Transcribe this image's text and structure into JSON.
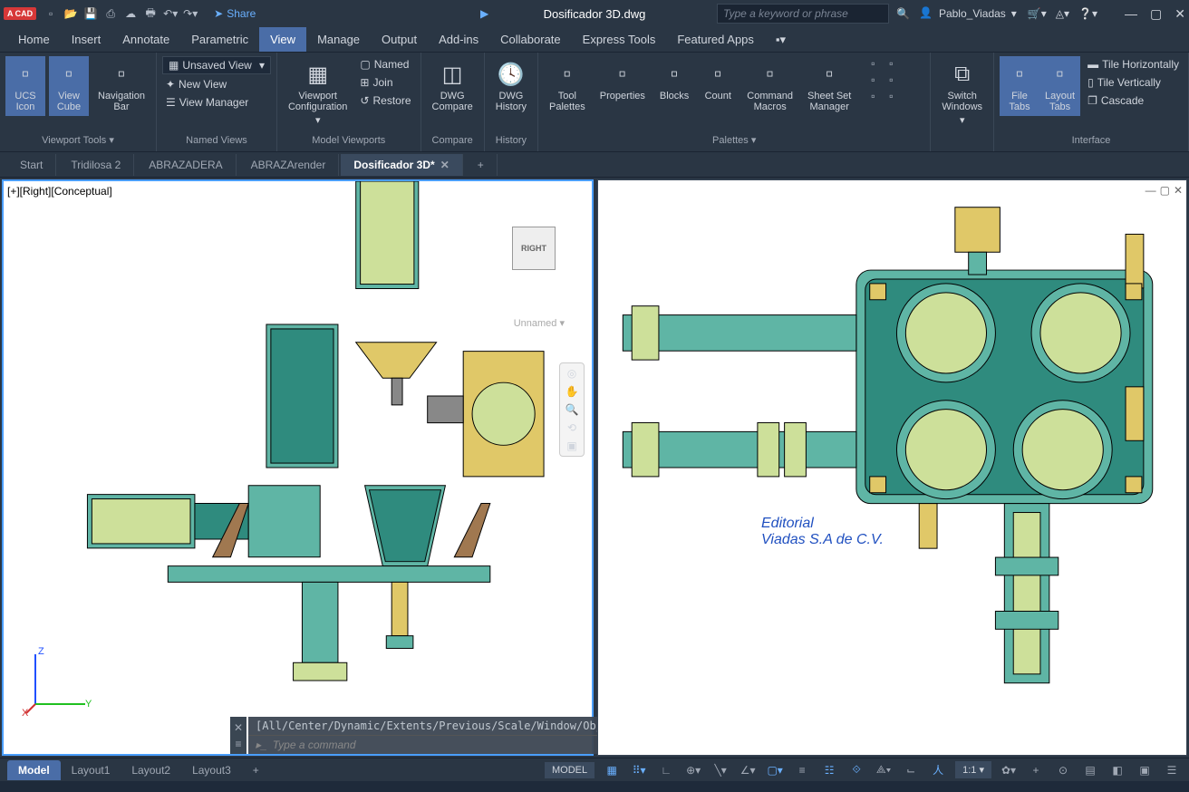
{
  "app": {
    "badge": "A CAD",
    "title": "Dosificador 3D.dwg"
  },
  "search": {
    "placeholder": "Type a keyword or phrase"
  },
  "user": {
    "name": "Pablo_Viadas"
  },
  "share": {
    "label": "Share"
  },
  "menu": {
    "items": [
      "Home",
      "Insert",
      "Annotate",
      "Parametric",
      "View",
      "Manage",
      "Output",
      "Add-ins",
      "Collaborate",
      "Express Tools",
      "Featured Apps"
    ],
    "active": 4
  },
  "ribbon": {
    "panels": [
      {
        "title": "Viewport Tools ▾",
        "buttons": [
          {
            "label": "UCS\nIcon",
            "active": true
          },
          {
            "label": "View\nCube",
            "active": true
          },
          {
            "label": "Navigation\nBar",
            "active": false
          }
        ]
      },
      {
        "title": "Named Views",
        "dropdown": "Unsaved View",
        "small": [
          "New View",
          "View Manager"
        ]
      },
      {
        "title": "Model Viewports",
        "big": "Viewport\nConfiguration",
        "small": [
          "Named",
          "Join",
          "Restore"
        ]
      },
      {
        "title": "Compare",
        "big": "DWG\nCompare"
      },
      {
        "title": "History",
        "big": "DWG\nHistory"
      },
      {
        "title": "Palettes ▾",
        "buttons": [
          {
            "label": "Tool\nPalettes"
          },
          {
            "label": "Properties"
          },
          {
            "label": "Blocks"
          },
          {
            "label": "Count"
          },
          {
            "label": "Command\nMacros"
          },
          {
            "label": "Sheet Set\nManager"
          }
        ],
        "extraIcons": 6
      },
      {
        "title": "",
        "big": "Switch\nWindows"
      },
      {
        "title": "Interface",
        "buttons": [
          {
            "label": "File\nTabs",
            "active": true
          },
          {
            "label": "Layout\nTabs",
            "active": true
          }
        ],
        "small": [
          "Tile Horizontally",
          "Tile Vertically",
          "Cascade"
        ]
      }
    ]
  },
  "fileTabs": {
    "tabs": [
      "Start",
      "Tridilosa 2",
      "ABRAZADERA",
      "ABRAZArender",
      "Dosificador 3D*"
    ],
    "active": 4
  },
  "viewport": {
    "left": {
      "label": "[+][Right][Conceptual]",
      "viewcube": "RIGHT",
      "unnamed": "Unnamed ▾",
      "active": true,
      "ucs": {
        "z": "Z",
        "y": "Y",
        "x": "X"
      }
    },
    "right": {
      "watermark1": "Editorial",
      "watermark2": "Viadas S.A de C.V."
    }
  },
  "commandLine": {
    "history": "[All/Center/Dynamic/Extents/Previous/Scale/Window/Object] <real time>:",
    "prompt": "Type a command"
  },
  "layoutTabs": {
    "tabs": [
      "Model",
      "Layout1",
      "Layout2",
      "Layout3"
    ],
    "active": 0
  },
  "statusBar": {
    "modeLabel": "MODEL",
    "scale": "1:1"
  },
  "colors": {
    "bg": "#2a3644",
    "accent": "#4a6da7",
    "viewportBg": "#ffffff",
    "cadTeal": "#5fb5a5",
    "cadTealDark": "#2f8b7e",
    "cadYellow": "#e0c868",
    "cadBrown": "#a07850",
    "cadBlue": "#4a7bc8"
  }
}
